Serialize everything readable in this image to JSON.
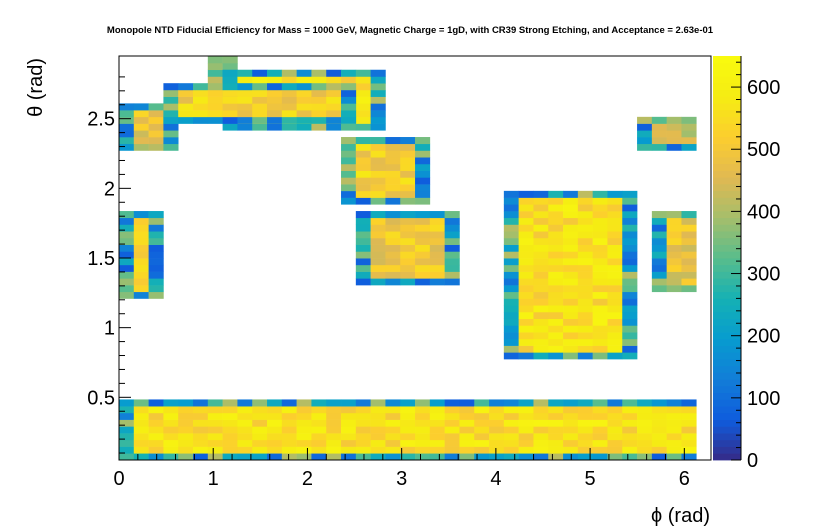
{
  "chart_data": {
    "type": "heatmap",
    "title": "Monopole NTD Fiducial Efficiency for Mass = 1000 GeV, Magnetic Charge = 1gD, with CR39 Strong Etching, and Acceptance = 2.63e-01",
    "xlabel": "ϕ (rad)",
    "ylabel": "θ (rad)",
    "xlim": [
      0,
      6.2832
    ],
    "ylim": [
      0.05,
      2.95
    ],
    "x_ticks": [
      "0",
      "1",
      "2",
      "3",
      "4",
      "5",
      "6"
    ],
    "y_ticks": [
      "0.5",
      "1",
      "1.5",
      "2",
      "2.5"
    ],
    "colorbar": {
      "range": [
        0,
        650
      ],
      "ticks": [
        "0",
        "100",
        "200",
        "300",
        "400",
        "500",
        "600"
      ],
      "palette": "bird"
    },
    "bin_width_phi": 0.1571,
    "bin_height_theta": 0.0483,
    "regions": [
      {
        "phi": [
          1.0,
          1.25
        ],
        "theta": [
          2.75,
          2.9
        ],
        "value": 560
      },
      {
        "phi": [
          1.25,
          2.75
        ],
        "theta": [
          2.45,
          2.85
        ],
        "value": 560
      },
      {
        "phi": [
          0.0,
          0.55
        ],
        "theta": [
          2.3,
          2.6
        ],
        "value": 480
      },
      {
        "phi": [
          0.6,
          2.5
        ],
        "theta": [
          2.5,
          2.75
        ],
        "value": 520
      },
      {
        "phi": [
          2.5,
          3.2
        ],
        "theta": [
          1.9,
          2.35
        ],
        "value": 520
      },
      {
        "phi": [
          4.15,
          5.45
        ],
        "theta": [
          0.8,
          1.95
        ],
        "value": 560
      },
      {
        "phi": [
          0.0,
          0.4
        ],
        "theta": [
          1.25,
          1.8
        ],
        "value": 540
      },
      {
        "phi": [
          2.65,
          3.5
        ],
        "theta": [
          1.35,
          1.8
        ],
        "value": 500
      },
      {
        "phi": [
          5.7,
          6.28
        ],
        "theta": [
          1.3,
          1.8
        ],
        "value": 480
      },
      {
        "phi": [
          5.6,
          6.28
        ],
        "theta": [
          2.3,
          2.5
        ],
        "value": 440
      },
      {
        "phi": [
          0.0,
          6.28
        ],
        "theta": [
          0.05,
          0.45
        ],
        "value": 560
      }
    ],
    "grid": false
  }
}
